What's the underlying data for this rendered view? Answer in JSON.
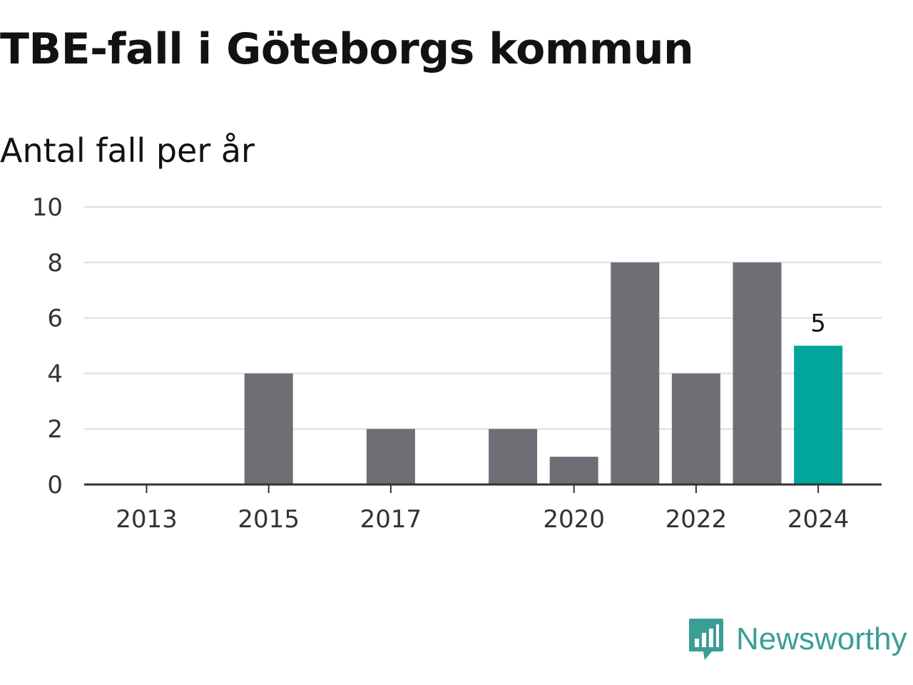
{
  "title": "TBE-fall i Göteborgs kommun",
  "subtitle": "Antal fall per år",
  "brand": {
    "name": "Newsworthy",
    "color": "#3b9e95",
    "icon": "bar-chart-speech-bubble-icon"
  },
  "colors": {
    "bar_default": "#6f6e74",
    "bar_highlight": "#00a69c",
    "grid": "#dddddd",
    "axis": "#333333"
  },
  "chart_data": {
    "type": "bar",
    "categories": [
      "2013",
      "2014",
      "2015",
      "2016",
      "2017",
      "2018",
      "2019",
      "2020",
      "2021",
      "2022",
      "2023",
      "2024"
    ],
    "x_tick_labels": [
      "2013",
      "2015",
      "2017",
      "2020",
      "2022",
      "2024"
    ],
    "values": [
      0,
      0,
      4,
      0,
      2,
      0,
      2,
      1,
      8,
      4,
      8,
      5
    ],
    "highlight_category": "2024",
    "data_labels": [
      {
        "category": "2024",
        "text": "5"
      }
    ],
    "y_ticks": [
      "0",
      "2",
      "4",
      "6",
      "8",
      "10"
    ],
    "ylim": [
      0,
      10
    ],
    "title": "TBE-fall i Göteborgs kommun",
    "subtitle": "Antal fall per år",
    "xlabel": "",
    "ylabel": "",
    "grid": true,
    "legend": "none"
  }
}
